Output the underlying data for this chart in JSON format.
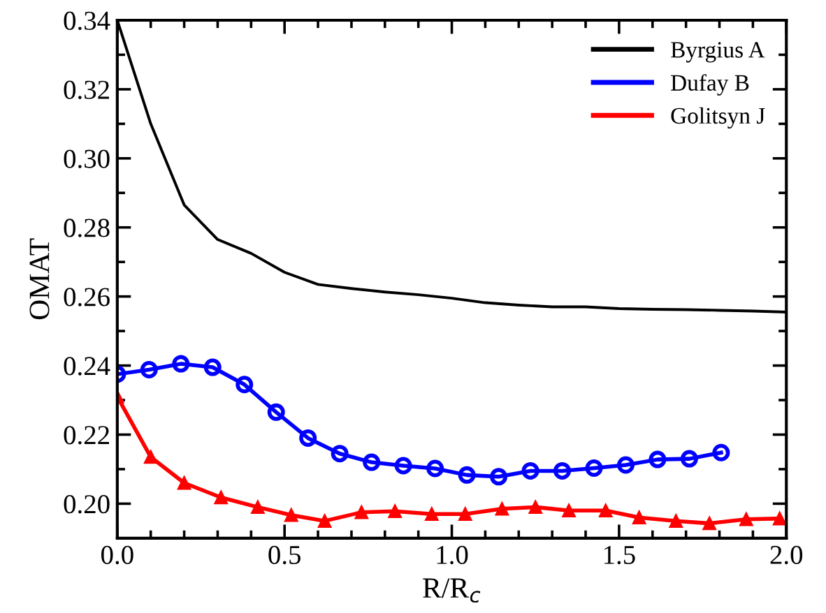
{
  "chart_data": {
    "type": "line",
    "xlabel": "R/R$_{c}$",
    "ylabel": "OMAT",
    "xlim": [
      0,
      2.0
    ],
    "ylim": [
      0.19,
      0.34
    ],
    "xticks": [
      {
        "value": 0,
        "label": "0.0"
      },
      0.5,
      {
        "value": 1,
        "label": "1.0"
      },
      1.5,
      {
        "value": 2,
        "label": "2.0"
      }
    ],
    "yticks": [
      {
        "value": 0.2,
        "label": "0.20"
      },
      0.22,
      0.24,
      0.26,
      0.28,
      {
        "value": 0.3,
        "label": "0.30"
      },
      0.32,
      0.34
    ],
    "legend": "top right",
    "grid": false,
    "series": [
      {
        "name": "Byrgius A",
        "color": "#000000",
        "marker": "none",
        "x": [
          0,
          0.1,
          0.2,
          0.3,
          0.4,
          0.5,
          0.6,
          0.7,
          0.8,
          0.9,
          1.0,
          1.1,
          1.2,
          1.3,
          1.4,
          1.5,
          1.6,
          1.7,
          1.8,
          1.9,
          2.0
        ],
        "values": [
          0.34,
          0.31,
          0.2865,
          0.2765,
          0.2725,
          0.267,
          0.2635,
          0.2623,
          0.2613,
          0.2605,
          0.2595,
          0.2582,
          0.2575,
          0.257,
          0.257,
          0.2565,
          0.2563,
          0.2562,
          0.256,
          0.2558,
          0.2555
        ]
      },
      {
        "name": "Dufay B",
        "color": "#0000ff",
        "marker": "circle",
        "x": [
          0,
          0.095,
          0.19,
          0.285,
          0.38,
          0.475,
          0.57,
          0.665,
          0.76,
          0.855,
          0.95,
          1.045,
          1.14,
          1.235,
          1.33,
          1.425,
          1.52,
          1.615,
          1.71,
          1.805
        ],
        "values": [
          0.2375,
          0.2388,
          0.2405,
          0.2395,
          0.2345,
          0.2265,
          0.219,
          0.2145,
          0.212,
          0.211,
          0.2102,
          0.2083,
          0.2078,
          0.2095,
          0.2095,
          0.2103,
          0.2112,
          0.2128,
          0.213,
          0.2148
        ]
      },
      {
        "name": "Golitsyn J",
        "color": "#ff0000",
        "marker": "triangle",
        "x": [
          0,
          0.1,
          0.2,
          0.31,
          0.42,
          0.52,
          0.62,
          0.73,
          0.83,
          0.94,
          1.04,
          1.15,
          1.25,
          1.35,
          1.46,
          1.56,
          1.67,
          1.77,
          1.88,
          1.98
        ],
        "values": [
          0.231,
          0.2135,
          0.206,
          0.2018,
          0.199,
          0.1967,
          0.195,
          0.1975,
          0.1978,
          0.197,
          0.197,
          0.1985,
          0.199,
          0.198,
          0.198,
          0.196,
          0.195,
          0.1943,
          0.1955,
          0.1957
        ]
      }
    ]
  }
}
